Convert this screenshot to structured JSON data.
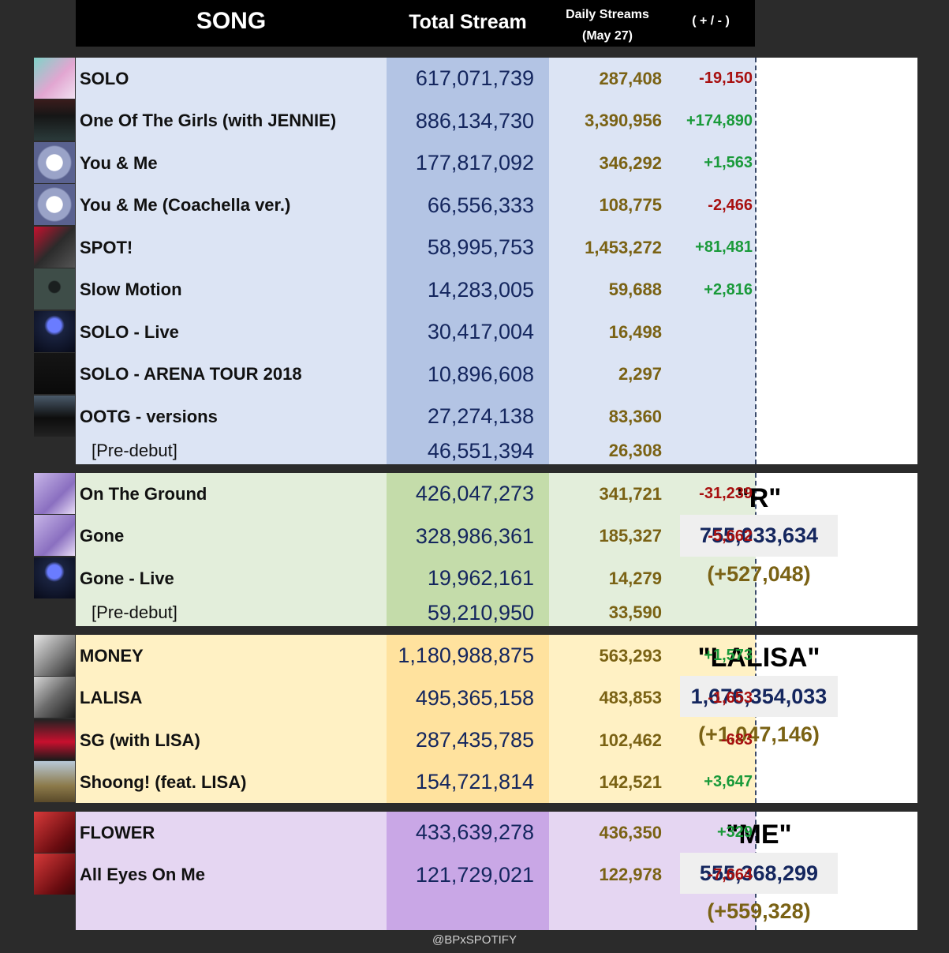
{
  "header": {
    "song": "SONG",
    "total": "Total Stream",
    "daily_line1": "Daily Streams",
    "daily_line2": "(May 27)",
    "change": "( + / - )"
  },
  "colors": {
    "blue_section": "#dce4f4",
    "blue_total": "#b3c4e4",
    "green_section": "#e3eedb",
    "green_total": "#c4dcaa",
    "yellow_section": "#fff1c4",
    "yellow_total": "#ffe29e",
    "purple_section": "#e5d6f2",
    "purple_total": "#c9a7e6",
    "positive": "#1a9a3a",
    "negative": "#a81010"
  },
  "jennie": {
    "rows": [
      {
        "name": "SOLO",
        "total": "617,071,739",
        "daily": "287,408",
        "change": "-19,150",
        "dir": "neg"
      },
      {
        "name": "One Of The Girls (with JENNIE)",
        "total": "886,134,730",
        "daily": "3,390,956",
        "change": "+174,890",
        "dir": "pos"
      },
      {
        "name": "You & Me",
        "total": "177,817,092",
        "daily": "346,292",
        "change": "+1,563",
        "dir": "pos"
      },
      {
        "name": "You & Me (Coachella ver.)",
        "total": "66,556,333",
        "daily": "108,775",
        "change": "-2,466",
        "dir": "neg"
      },
      {
        "name": "SPOT!",
        "total": "58,995,753",
        "daily": "1,453,272",
        "change": "+81,481",
        "dir": "pos"
      },
      {
        "name": "Slow Motion",
        "total": "14,283,005",
        "daily": "59,688",
        "change": "+2,816",
        "dir": "pos"
      },
      {
        "name": "SOLO - Live",
        "total": "30,417,004",
        "daily": "16,498",
        "change": "",
        "dir": ""
      },
      {
        "name": "SOLO - ARENA TOUR 2018",
        "total": "10,896,608",
        "daily": "2,297",
        "change": "",
        "dir": ""
      },
      {
        "name": "OOTG - versions",
        "total": "27,274,138",
        "daily": "83,360",
        "change": "",
        "dir": ""
      },
      {
        "name": "[Pre-debut]",
        "total": "46,551,394",
        "daily": "26,308",
        "change": "",
        "dir": ""
      }
    ]
  },
  "rose": {
    "rows": [
      {
        "name": "On The Ground",
        "total": "426,047,273",
        "daily": "341,721",
        "change": "-31,239",
        "dir": "neg"
      },
      {
        "name": "Gone",
        "total": "328,986,361",
        "daily": "185,327",
        "change": "-5,662",
        "dir": "neg"
      },
      {
        "name": "Gone - Live",
        "total": "19,962,161",
        "daily": "14,279",
        "change": "",
        "dir": ""
      },
      {
        "name": "[Pre-debut]",
        "total": "59,210,950",
        "daily": "33,590",
        "change": "",
        "dir": ""
      }
    ],
    "summary": {
      "title": "\"R\"",
      "total": "755,033,634",
      "change": "(+527,048)"
    }
  },
  "lisa": {
    "rows": [
      {
        "name": "MONEY",
        "total": "1,180,988,875",
        "daily": "563,293",
        "change": "+1,573",
        "dir": "pos"
      },
      {
        "name": "LALISA",
        "total": "495,365,158",
        "daily": "483,853",
        "change": "-1,653",
        "dir": "neg"
      },
      {
        "name": "SG (with LISA)",
        "total": "287,435,785",
        "daily": "102,462",
        "change": "-683",
        "dir": "neg"
      },
      {
        "name": "Shoong! (feat. LISA)",
        "total": "154,721,814",
        "daily": "142,521",
        "change": "+3,647",
        "dir": "pos"
      }
    ],
    "summary": {
      "title": "\"LALISA\"",
      "total": "1,676,354,033",
      "change": "(+1,047,146)"
    }
  },
  "jisoo": {
    "rows": [
      {
        "name": "FLOWER",
        "total": "433,639,278",
        "daily": "436,350",
        "change": "+329",
        "dir": "pos"
      },
      {
        "name": "All Eyes On Me",
        "total": "121,729,021",
        "daily": "122,978",
        "change": "-7,664",
        "dir": "neg"
      }
    ],
    "summary": {
      "title": "\"ME\"",
      "total": "555,368,299",
      "change": "(+559,328)"
    }
  },
  "footer": "@BPxSPOTIFY"
}
